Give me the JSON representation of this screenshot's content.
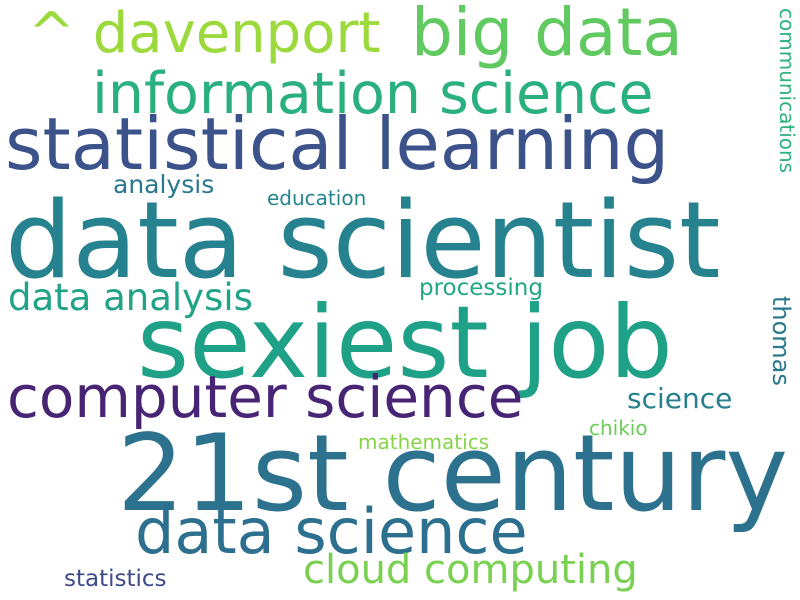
{
  "words": [
    {
      "text": "data scientist",
      "color": "#26828e"
    },
    {
      "text": "sexiest job",
      "color": "#1fa187"
    },
    {
      "text": "21st century",
      "color": "#2c728e"
    },
    {
      "text": "statistical learning",
      "color": "#3b528b"
    },
    {
      "text": "computer science",
      "color": "#482475"
    },
    {
      "text": "data science",
      "color": "#2d6f8e"
    },
    {
      "text": "information science",
      "color": "#2ab07f"
    },
    {
      "text": "big data",
      "color": "#60ca60"
    },
    {
      "text": "^ davenport",
      "color": "#9bd93c"
    },
    {
      "text": "cloud computing",
      "color": "#7ad151"
    },
    {
      "text": "data analysis",
      "color": "#20a386"
    },
    {
      "text": "processing",
      "color": "#22a785"
    },
    {
      "text": "science",
      "color": "#277f8e"
    },
    {
      "text": "analysis",
      "color": "#2a788e"
    },
    {
      "text": "education",
      "color": "#25858e"
    },
    {
      "text": "statistics",
      "color": "#3e4a89"
    },
    {
      "text": "mathematics",
      "color": "#86d549"
    },
    {
      "text": "chikio",
      "color": "#6ccd5a"
    },
    {
      "text": "thomas",
      "color": "#2a788e"
    },
    {
      "text": "communications",
      "color": "#2db27d"
    }
  ]
}
